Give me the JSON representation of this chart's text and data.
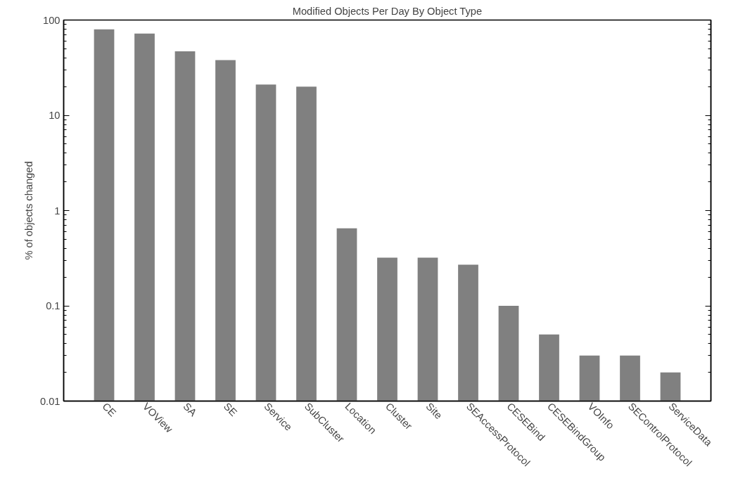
{
  "chart_data": {
    "type": "bar",
    "title": "Modified Objects Per Day By Object Type",
    "ylabel": "% of objects changed",
    "categories": [
      "CE",
      "VOView",
      "SA",
      "SE",
      "Service",
      "SubCluster",
      "Location",
      "Cluster",
      "Site",
      "SEAccessProtocol",
      "CESEBind",
      "CESEBindGroup",
      "VOInfo",
      "SEControlProtocol",
      "ServiceData"
    ],
    "values": [
      80,
      72,
      47,
      38,
      21,
      20,
      0.65,
      0.32,
      0.32,
      0.27,
      0.1,
      0.05,
      0.03,
      0.03,
      0.02
    ],
    "color": "#808080",
    "log": true,
    "ylim": [
      0.01,
      100
    ],
    "yticks": [
      0.01,
      0.1,
      1,
      10,
      100
    ],
    "grid": false
  }
}
